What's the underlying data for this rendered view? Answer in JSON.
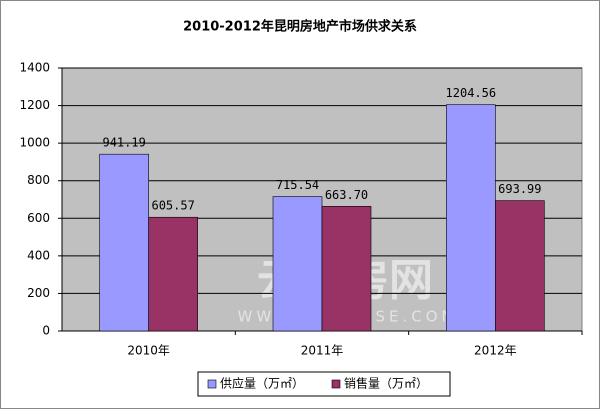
{
  "chart_data": {
    "type": "bar",
    "title": "2010-2012年昆明房地产市场供求关系",
    "categories": [
      "2010年",
      "2011年",
      "2012年"
    ],
    "series": [
      {
        "name": "供应量（万㎡）",
        "color": "#9999ff",
        "values": [
          941.19,
          715.54,
          1204.56
        ]
      },
      {
        "name": "销售量（万㎡）",
        "color": "#993366",
        "values": [
          605.57,
          663.7,
          693.99
        ],
        "value_labels": [
          "605.57",
          "663.70",
          "693.99"
        ]
      }
    ],
    "ylim": [
      0,
      1400
    ],
    "yticks": [
      0,
      200,
      400,
      600,
      800,
      1000,
      1200,
      1400
    ],
    "grid": true,
    "legend": "bottom",
    "plot_background": "#c0c0c0",
    "watermark": {
      "brand": "云南房网",
      "url": "WWW.YNHOUSE.COM"
    }
  }
}
